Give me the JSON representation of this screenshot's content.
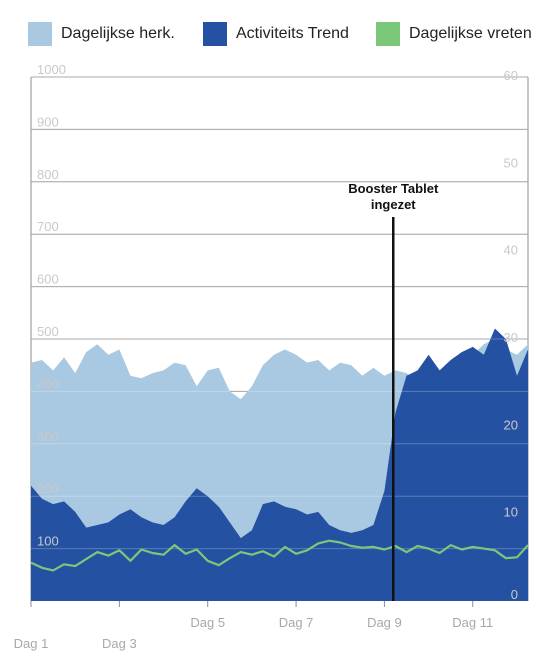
{
  "legend": [
    {
      "label": "Dagelijkse herk.",
      "color": "#a9c8e2"
    },
    {
      "label": "Activiteits Trend",
      "color": "#2451a2"
    },
    {
      "label": "Dagelijkse vreten",
      "color": "#7cc87a"
    }
  ],
  "annotation": {
    "line1": "Booster Tablet",
    "line2": "ingezet",
    "x": 8.7
  },
  "chart_data": {
    "type": "area",
    "title": "",
    "xlabel": "",
    "ylabel": "",
    "xlim": [
      0.5,
      11.75
    ],
    "ylim_left": [
      0,
      1000
    ],
    "ylim_right": [
      0,
      60
    ],
    "grid": true,
    "legend_position": "top",
    "left_ticks": [
      {
        "v": 100,
        "label": "100"
      },
      {
        "v": 200,
        "label": "200"
      },
      {
        "v": 300,
        "label": "300"
      },
      {
        "v": 400,
        "label": "400"
      },
      {
        "v": 500,
        "label": "500"
      },
      {
        "v": 600,
        "label": "600"
      },
      {
        "v": 700,
        "label": "700"
      },
      {
        "v": 800,
        "label": "800"
      },
      {
        "v": 900,
        "label": "900"
      },
      {
        "v": 1000,
        "label": "1000"
      }
    ],
    "right_ticks": [
      {
        "v": 0,
        "label": "0"
      },
      {
        "v": 10,
        "label": "10"
      },
      {
        "v": 20,
        "label": "20"
      },
      {
        "v": 30,
        "label": "30"
      },
      {
        "v": 40,
        "label": "40"
      },
      {
        "v": 50,
        "label": "50"
      },
      {
        "v": 60,
        "label": "60"
      }
    ],
    "x_ticks": [
      {
        "v": 0.5,
        "label": "Dag 1",
        "row": 2
      },
      {
        "v": 2.5,
        "label": "Dag 3",
        "row": 2
      },
      {
        "v": 4.5,
        "label": "Dag 5",
        "row": 1
      },
      {
        "v": 6.5,
        "label": "Dag 7",
        "row": 1
      },
      {
        "v": 8.5,
        "label": "Dag 9",
        "row": 1
      },
      {
        "v": 10.5,
        "label": "Dag 11",
        "row": 1
      }
    ],
    "series": [
      {
        "name": "Dagelijkse herk.",
        "axis": "left",
        "color": "#a9c8e2",
        "x": [
          0.5,
          0.75,
          1.0,
          1.25,
          1.5,
          1.75,
          2.0,
          2.25,
          2.5,
          2.75,
          3.0,
          3.25,
          3.5,
          3.75,
          4.0,
          4.25,
          4.5,
          4.75,
          5.0,
          5.25,
          5.5,
          5.75,
          6.0,
          6.25,
          6.5,
          6.75,
          7.0,
          7.25,
          7.5,
          7.75,
          8.0,
          8.25,
          8.5,
          8.75,
          9.0,
          9.25,
          9.5,
          9.75,
          10.0,
          10.25,
          10.5,
          10.75,
          11.0,
          11.25,
          11.5,
          11.75
        ],
        "values": [
          455,
          460,
          440,
          465,
          435,
          475,
          490,
          470,
          480,
          430,
          425,
          435,
          440,
          455,
          450,
          410,
          440,
          445,
          400,
          385,
          410,
          450,
          470,
          480,
          470,
          455,
          460,
          440,
          455,
          450,
          430,
          445,
          430,
          440,
          435,
          420,
          445,
          440,
          455,
          440,
          470,
          490,
          500,
          480,
          470,
          490
        ]
      },
      {
        "name": "Activiteits Trend",
        "axis": "left",
        "color": "#2451a2",
        "x": [
          0.5,
          0.75,
          1.0,
          1.25,
          1.5,
          1.75,
          2.0,
          2.25,
          2.5,
          2.75,
          3.0,
          3.25,
          3.5,
          3.75,
          4.0,
          4.25,
          4.5,
          4.75,
          5.0,
          5.25,
          5.5,
          5.75,
          6.0,
          6.25,
          6.5,
          6.75,
          7.0,
          7.25,
          7.5,
          7.75,
          8.0,
          8.25,
          8.5,
          8.75,
          9.0,
          9.25,
          9.5,
          9.75,
          10.0,
          10.25,
          10.5,
          10.75,
          11.0,
          11.25,
          11.5,
          11.75
        ],
        "values": [
          220,
          195,
          185,
          190,
          170,
          140,
          145,
          150,
          165,
          175,
          160,
          150,
          145,
          160,
          190,
          215,
          200,
          180,
          150,
          120,
          135,
          185,
          190,
          180,
          175,
          165,
          170,
          145,
          135,
          130,
          135,
          145,
          210,
          360,
          430,
          440,
          470,
          440,
          460,
          475,
          485,
          470,
          520,
          500,
          430,
          480
        ]
      },
      {
        "name": "Dagelijkse vreten",
        "axis": "right",
        "color": "#7cc87a",
        "x": [
          0.5,
          0.75,
          1.0,
          1.25,
          1.5,
          1.75,
          2.0,
          2.25,
          2.5,
          2.75,
          3.0,
          3.25,
          3.5,
          3.75,
          4.0,
          4.25,
          4.5,
          4.75,
          5.0,
          5.25,
          5.5,
          5.75,
          6.0,
          6.25,
          6.5,
          6.75,
          7.0,
          7.25,
          7.5,
          7.75,
          8.0,
          8.25,
          8.5,
          8.75,
          9.0,
          9.25,
          9.5,
          9.75,
          10.0,
          10.25,
          10.5,
          10.75,
          11.0,
          11.25,
          11.5,
          11.75
        ],
        "values": [
          4.4,
          3.8,
          3.5,
          4.2,
          4.0,
          4.8,
          5.6,
          5.2,
          5.8,
          4.6,
          5.9,
          5.5,
          5.3,
          6.4,
          5.4,
          5.9,
          4.6,
          4.1,
          4.9,
          5.6,
          5.3,
          5.7,
          5.1,
          6.2,
          5.4,
          5.8,
          6.6,
          6.9,
          6.7,
          6.3,
          6.1,
          6.2,
          5.9,
          6.3,
          5.6,
          6.3,
          6.0,
          5.5,
          6.4,
          5.9,
          6.2,
          6.0,
          5.8,
          4.9,
          5.0,
          6.4
        ]
      }
    ]
  }
}
